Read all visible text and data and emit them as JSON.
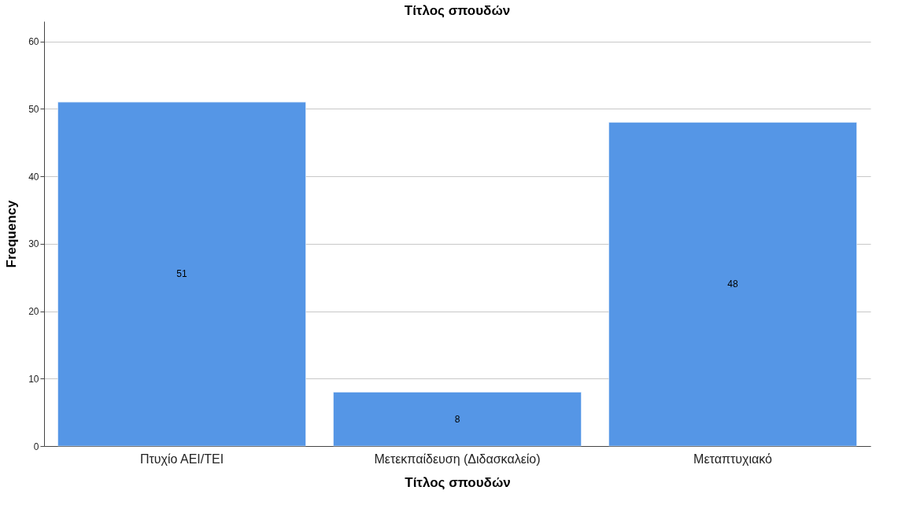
{
  "chart_data": {
    "type": "bar",
    "title": "Τίτλος σπουδών",
    "xlabel": "Τίτλος σπουδών",
    "ylabel": "Frequency",
    "categories": [
      "Πτυχίο ΑΕΙ/ΤΕΙ",
      "Μετεκπαίδευση (Διδασκαλείο)",
      "Μεταπτυχιακό"
    ],
    "values": [
      51,
      8,
      48
    ],
    "color": "#5596e6",
    "ylim": [
      0,
      63
    ],
    "yticks": [
      0,
      10,
      20,
      30,
      40,
      50,
      60
    ],
    "grid": "y",
    "data_labels": true
  }
}
